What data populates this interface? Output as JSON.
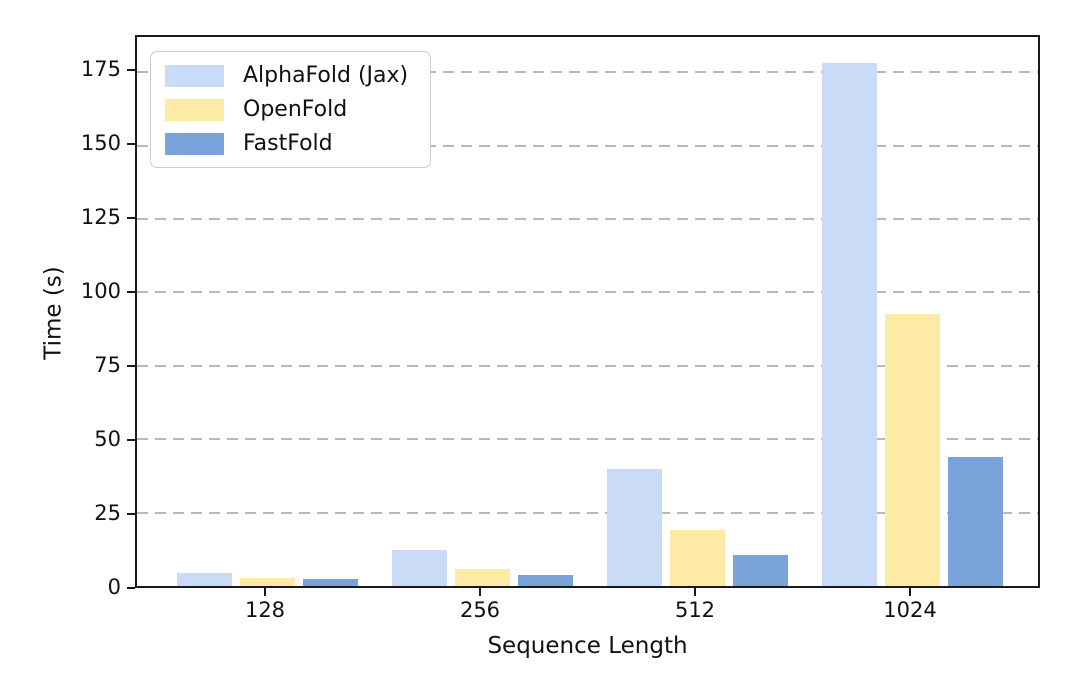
{
  "chart_data": {
    "type": "bar",
    "title": "",
    "xlabel": "Sequence Length",
    "ylabel": "Time (s)",
    "categories": [
      "128",
      "256",
      "512",
      "1024"
    ],
    "series": [
      {
        "name": "AlphaFold (Jax)",
        "color": "#c9dbf7",
        "values": [
          4.6,
          12.1,
          40,
          178
        ]
      },
      {
        "name": "OpenFold",
        "color": "#fdeaa4",
        "values": [
          2.9,
          5.8,
          19,
          92.5
        ]
      },
      {
        "name": "FastFold",
        "color": "#7aa2db",
        "values": [
          2.4,
          3.6,
          10.5,
          44
        ]
      }
    ],
    "y_ticks": [
      0,
      25,
      50,
      75,
      100,
      125,
      150,
      175
    ],
    "ylim": [
      0,
      187
    ],
    "grid": "horizontal-dashed",
    "legend_position": "upper-left"
  },
  "colors": {
    "background": "#ffffff",
    "spine": "#1a1a1a",
    "gridline": "#b9b9b9",
    "legend_border": "#cccccc",
    "text": "#111111"
  }
}
